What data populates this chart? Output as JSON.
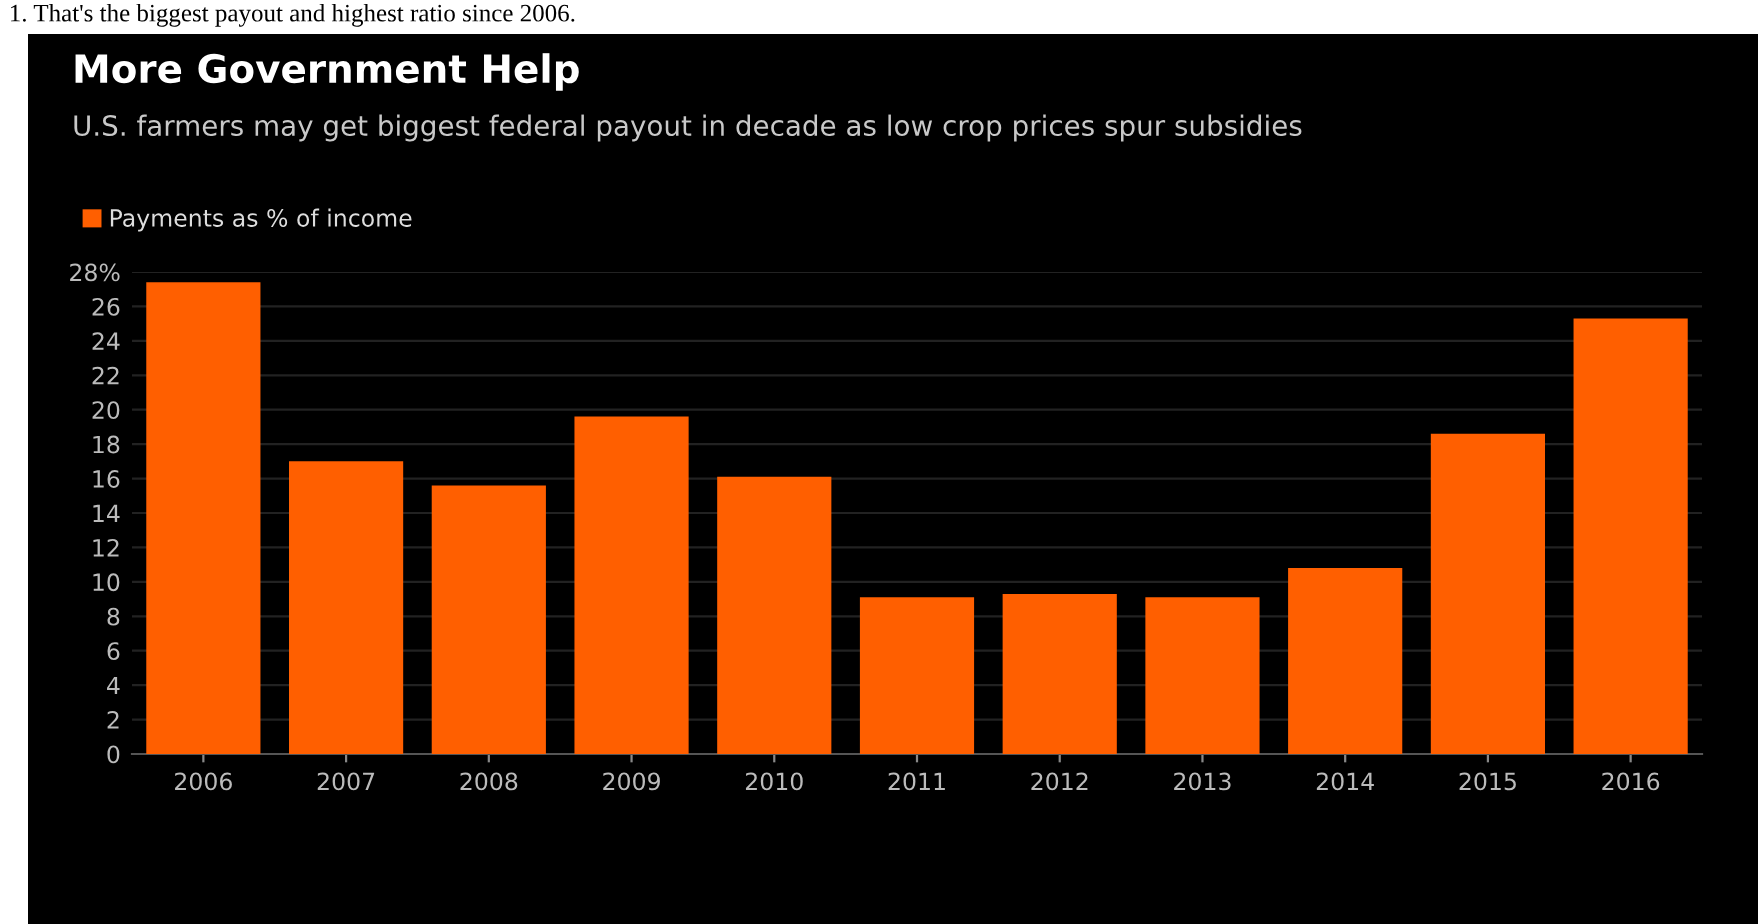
{
  "chart_data": {
    "type": "bar",
    "title": "More Government Help",
    "subtitle": "U.S. farmers may get biggest federal payout in decade as low crop prices spur subsidies",
    "annotations": [
      "1. That's the biggest payout and highest ratio since 2006."
    ],
    "categories": [
      "2006",
      "2007",
      "2008",
      "2009",
      "2010",
      "2011",
      "2012",
      "2013",
      "2014",
      "2015",
      "2016"
    ],
    "series": [
      {
        "name": "Payments as % of income",
        "color": "#ff5f00",
        "values": [
          27.4,
          17.0,
          15.6,
          19.6,
          16.1,
          9.1,
          9.3,
          9.1,
          10.8,
          18.6,
          25.3
        ]
      }
    ],
    "ylim": [
      0,
      28
    ],
    "yticks": [
      0,
      2,
      4,
      6,
      8,
      10,
      12,
      14,
      16,
      18,
      20,
      22,
      24,
      26,
      {
        "value": 28,
        "label": "28%"
      }
    ],
    "grid": "y",
    "legend": "top left"
  }
}
